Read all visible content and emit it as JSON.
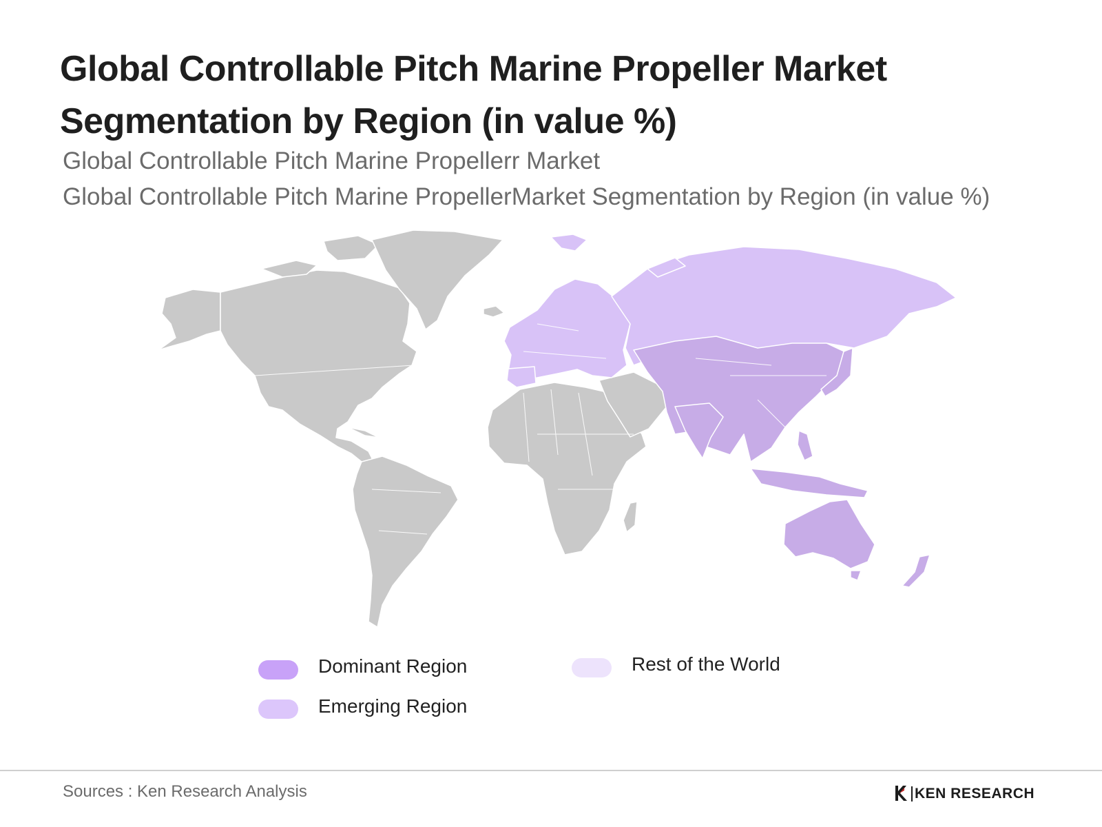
{
  "title": "Global Controllable Pitch Marine Propeller Market Segmentation by Region (in value %)",
  "subtitle_1": "Global Controllable Pitch Marine Propellerr Market",
  "subtitle_2": "Global Controllable Pitch Marine PropellerMarket Segmentation by Region (in value %)",
  "map": {
    "regions": [
      {
        "name": "North America",
        "category": "Rest of the World"
      },
      {
        "name": "South America",
        "category": "Rest of the World"
      },
      {
        "name": "Africa",
        "category": "Rest of the World"
      },
      {
        "name": "Middle East",
        "category": "Rest of the World"
      },
      {
        "name": "Greenland",
        "category": "Rest of the World"
      },
      {
        "name": "Europe",
        "category": "Emerging Region"
      },
      {
        "name": "Russia",
        "category": "Emerging Region"
      },
      {
        "name": "Asia Pacific",
        "category": "Dominant Region"
      },
      {
        "name": "Australia",
        "category": "Dominant Region"
      }
    ],
    "colors": {
      "rest_of_world_land": "#c9c9c9",
      "emerging_land": "#d8c2f7",
      "dominant_land": "#c7ace7"
    }
  },
  "legend": [
    {
      "label": "Dominant Region",
      "color": "#c8a2f8"
    },
    {
      "label": "Emerging Region",
      "color": "#dcc6fb"
    },
    {
      "label": "Rest of the World",
      "color": "#ede3fc"
    }
  ],
  "source": "Sources : Ken Research Analysis",
  "logo": {
    "text": "KEN RESEARCH",
    "icon": "ken-research-logo-icon"
  }
}
